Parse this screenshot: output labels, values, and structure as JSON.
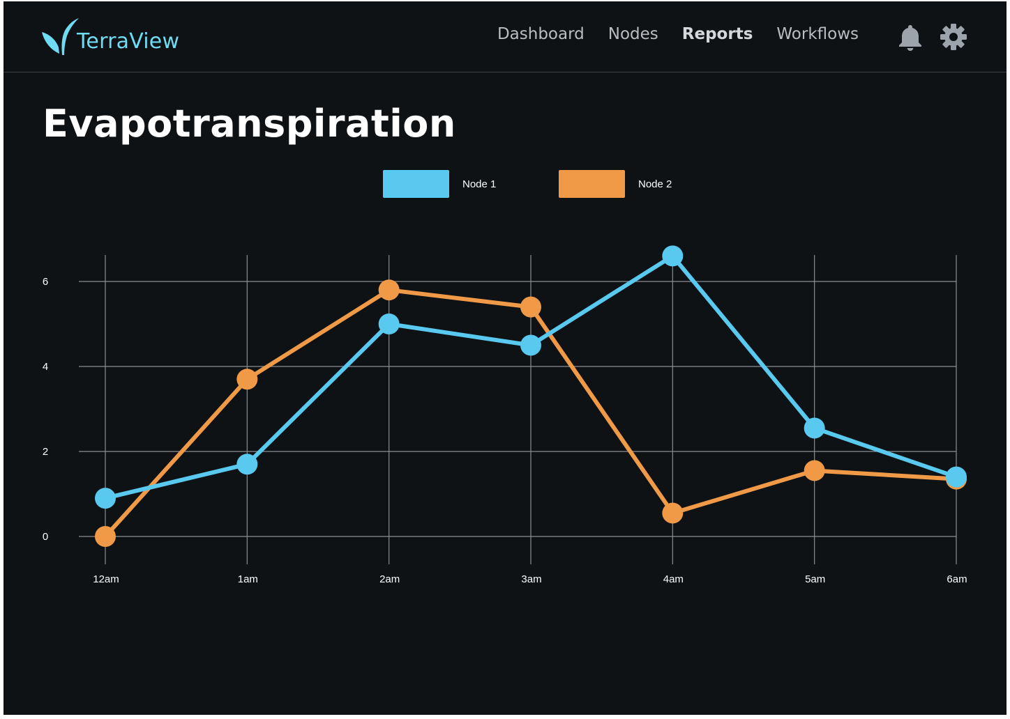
{
  "app": {
    "name": "TerraView",
    "logo_icon": "sprout-icon",
    "accent_color": "#6fdcf4"
  },
  "nav": {
    "items": [
      {
        "label": "Dashboard",
        "active": false
      },
      {
        "label": "Nodes",
        "active": false
      },
      {
        "label": "Reports",
        "active": true
      },
      {
        "label": "Workflows",
        "active": false
      }
    ],
    "icons": [
      "bell-icon",
      "gear-icon"
    ]
  },
  "page": {
    "title": "Evapotranspiration"
  },
  "chart_data": {
    "type": "line",
    "title": "",
    "xlabel": "",
    "ylabel": "",
    "categories": [
      "12am",
      "1am",
      "2am",
      "3am",
      "4am",
      "5am",
      "6am"
    ],
    "yticks": [
      0,
      2,
      4,
      6
    ],
    "ylim": [
      0,
      6.6
    ],
    "grid": true,
    "legend_position": "top-center",
    "series": [
      {
        "name": "Node 1",
        "color": "#59c9ef",
        "values": [
          0.9,
          1.7,
          5.0,
          4.5,
          6.6,
          2.55,
          1.4
        ]
      },
      {
        "name": "Node 2",
        "color": "#f09a48",
        "values": [
          0.0,
          3.7,
          5.8,
          5.4,
          0.55,
          1.55,
          1.35
        ]
      }
    ]
  }
}
